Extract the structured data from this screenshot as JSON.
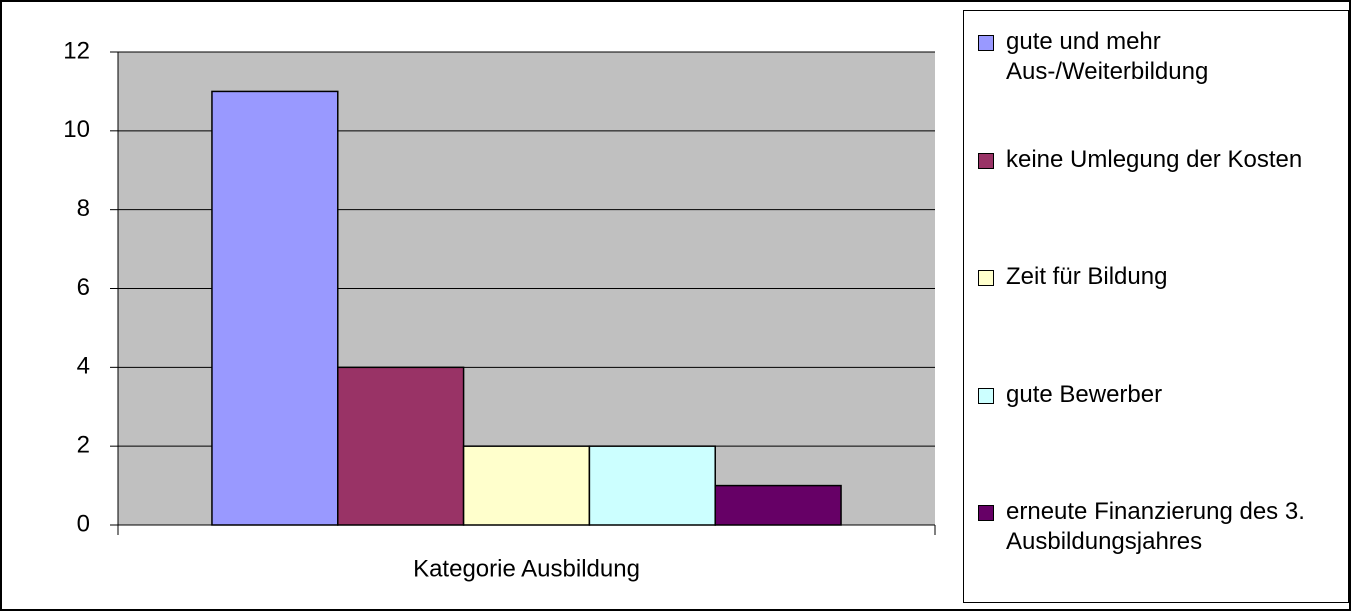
{
  "chart_data": {
    "type": "bar",
    "categories": [
      "Kategorie Ausbildung"
    ],
    "series": [
      {
        "name": "gute und mehr Aus-/Weiterbildung",
        "color": "#9999ff",
        "values": [
          11
        ]
      },
      {
        "name": "keine Umlegung der Kosten",
        "color": "#993366",
        "values": [
          4
        ]
      },
      {
        "name": "Zeit für Bildung",
        "color": "#ffffcc",
        "values": [
          2
        ]
      },
      {
        "name": "gute Bewerber",
        "color": "#ccffff",
        "values": [
          2
        ]
      },
      {
        "name": "erneute Finanzierung des 3. Ausbildungsjahres",
        "color": "#660066",
        "values": [
          1
        ]
      }
    ],
    "ylim": [
      0,
      12
    ],
    "yticks": [
      0,
      2,
      4,
      6,
      8,
      10,
      12
    ],
    "grid": true,
    "legend": "right"
  }
}
